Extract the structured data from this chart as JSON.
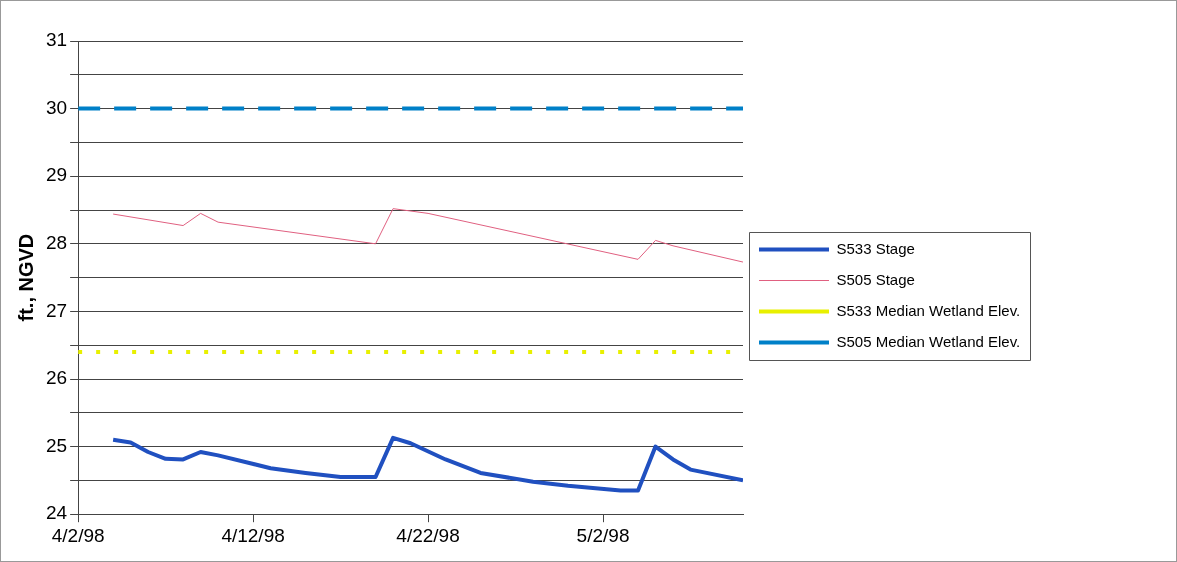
{
  "chart_data": {
    "type": "line",
    "ylabel": "ft., NGVD",
    "xlim": [
      "1998-04-02",
      "1998-05-10"
    ],
    "xticks": [
      {
        "value": "1998-04-02",
        "label": "4/2/98"
      },
      {
        "value": "1998-04-12",
        "label": "4/12/98"
      },
      {
        "value": "1998-04-22",
        "label": "4/22/98"
      },
      {
        "value": "1998-05-02",
        "label": "5/2/98"
      }
    ],
    "ylim": [
      24,
      31
    ],
    "yticks": [
      24,
      {
        "value": 24.5,
        "label": null
      },
      25,
      {
        "value": 25.5,
        "label": null
      },
      26,
      {
        "value": 26.5,
        "label": null
      },
      27,
      {
        "value": 27.5,
        "label": null
      },
      28,
      {
        "value": 28.5,
        "label": null
      },
      29,
      {
        "value": 29.5,
        "label": null
      },
      30,
      {
        "value": 30.5,
        "label": null
      },
      31
    ],
    "grid": "y",
    "legend": "right",
    "marker": "none",
    "series": [
      {
        "name": "S533 Stage",
        "color": "#2050c0",
        "line_style": "solid",
        "x": [
          "1998-04-04",
          "1998-04-05",
          "1998-04-06",
          "1998-04-07",
          "1998-04-08",
          "1998-04-09",
          "1998-04-10",
          "1998-04-13",
          "1998-04-15",
          "1998-04-17",
          "1998-04-19",
          "1998-04-20",
          "1998-04-21",
          "1998-04-23",
          "1998-04-25",
          "1998-04-28",
          "1998-04-30",
          "1998-05-03",
          "1998-05-04",
          "1998-05-05",
          "1998-05-06",
          "1998-05-07",
          "1998-05-10"
        ],
        "values": [
          25.1,
          25.06,
          24.92,
          24.82,
          24.81,
          24.92,
          24.87,
          24.68,
          24.61,
          24.55,
          24.55,
          25.13,
          25.05,
          24.81,
          24.61,
          24.48,
          24.42,
          24.35,
          24.35,
          25.0,
          24.81,
          24.66,
          24.5
        ]
      },
      {
        "name": "S505 Stage",
        "color": "#e06080",
        "line_style": "solid",
        "x": [
          "1998-04-04",
          "1998-04-08",
          "1998-04-09",
          "1998-04-10",
          "1998-04-19",
          "1998-04-20",
          "1998-04-22",
          "1998-05-04",
          "1998-05-05",
          "1998-05-06",
          "1998-05-10"
        ],
        "values": [
          28.44,
          28.27,
          28.45,
          28.32,
          28.0,
          28.52,
          28.45,
          27.77,
          28.05,
          27.97,
          27.73
        ]
      },
      {
        "name": "S533 Median Wetland Elev.",
        "color": "#e8f000",
        "line_style": "dotted",
        "x": [
          "1998-04-02",
          "1998-05-10"
        ],
        "values": [
          26.4,
          26.4
        ]
      },
      {
        "name": "S505 Median Wetland Elev.",
        "color": "#0080c8",
        "line_style": "dashed",
        "x": [
          "1998-04-02",
          "1998-05-10"
        ],
        "values": [
          30,
          30
        ]
      }
    ]
  }
}
